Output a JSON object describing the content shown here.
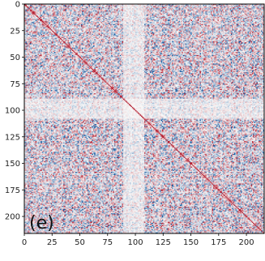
{
  "chart_data": {
    "type": "heatmap",
    "panel_label": "(e)",
    "size": 216,
    "xlim": [
      0,
      216
    ],
    "ylim": [
      216,
      0
    ],
    "x_ticks": [
      0,
      25,
      50,
      75,
      100,
      125,
      150,
      175,
      200
    ],
    "x_tick_labels": [
      "0",
      "25",
      "50",
      "75",
      "100",
      "125",
      "150",
      "175",
      "200"
    ],
    "y_ticks": [
      0,
      25,
      50,
      75,
      100,
      125,
      150,
      175,
      200
    ],
    "y_tick_labels": [
      "0",
      "25",
      "50",
      "75",
      "100",
      "125",
      "150",
      "175",
      "200"
    ],
    "colormap": "RdBu_r",
    "value_range": [
      -1,
      1
    ],
    "diagonal_value": 1,
    "colors": {
      "negative": "#08519c",
      "zero": "#f7f7f7",
      "positive": "#b2182b"
    },
    "pattern": "dense correlation-like matrix with dark diagonal and mixed red/blue off-diagonal structure"
  }
}
